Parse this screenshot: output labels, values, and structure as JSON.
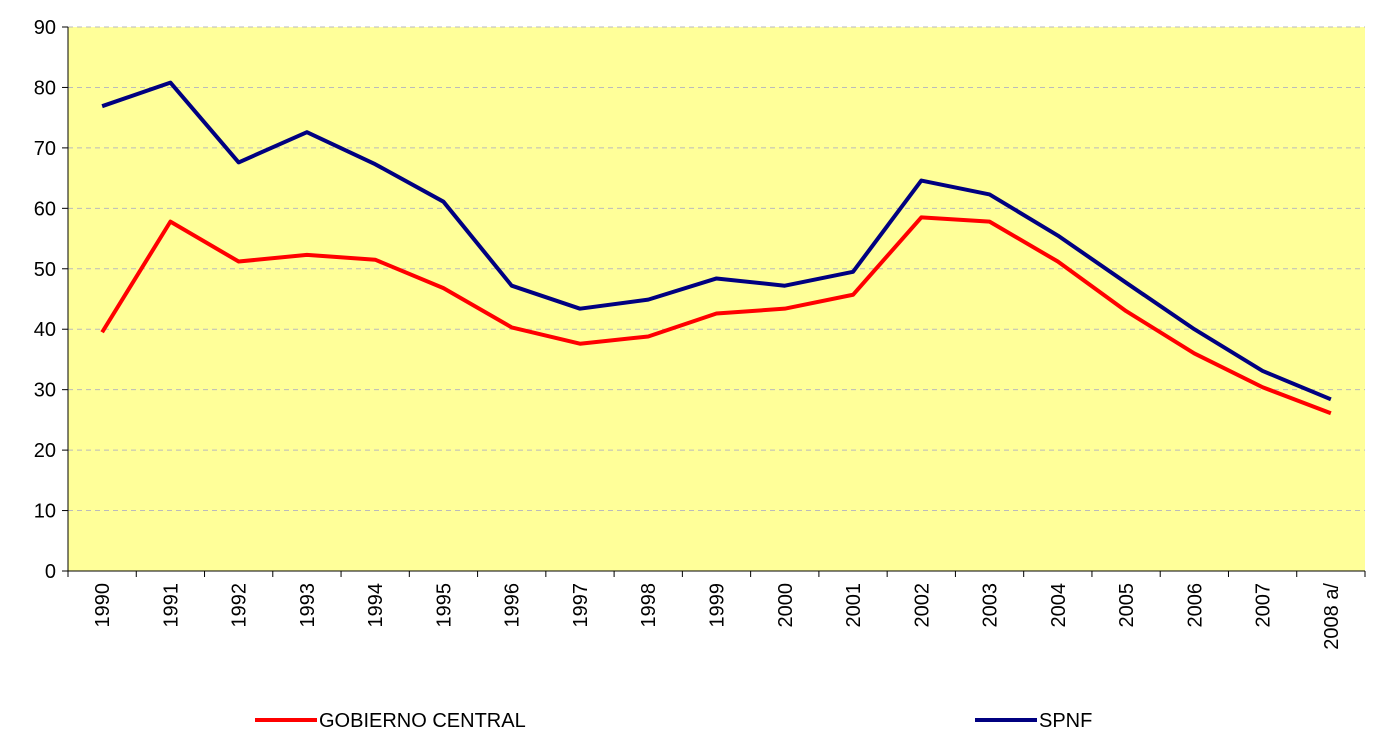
{
  "chart_data": {
    "type": "line",
    "categories": [
      "1990",
      "1991",
      "1992",
      "1993",
      "1994",
      "1995",
      "1996",
      "1997",
      "1998",
      "1999",
      "2000",
      "2001",
      "2002",
      "2003",
      "2004",
      "2005",
      "2006",
      "2007",
      "2008 a/"
    ],
    "series": [
      {
        "name": "GOBIERNO CENTRAL",
        "color": "#ff0000",
        "values": [
          39.5,
          57.8,
          51.2,
          52.3,
          51.5,
          46.8,
          40.3,
          37.6,
          38.8,
          42.6,
          43.4,
          45.7,
          58.5,
          57.8,
          51.2,
          43.0,
          36.0,
          30.4,
          26.1
        ]
      },
      {
        "name": "SPNF",
        "color": "#000080",
        "values": [
          76.9,
          80.8,
          67.6,
          72.6,
          67.3,
          61.1,
          47.2,
          43.4,
          44.9,
          48.4,
          47.2,
          49.5,
          64.6,
          62.3,
          55.5,
          47.7,
          40.0,
          33.1,
          28.4
        ]
      }
    ],
    "ylim": [
      0,
      90
    ],
    "yticks": [
      0,
      10,
      20,
      30,
      40,
      50,
      60,
      70,
      80,
      90
    ],
    "grid": true,
    "legend": "bottom",
    "plot_background": "#ffff99"
  }
}
